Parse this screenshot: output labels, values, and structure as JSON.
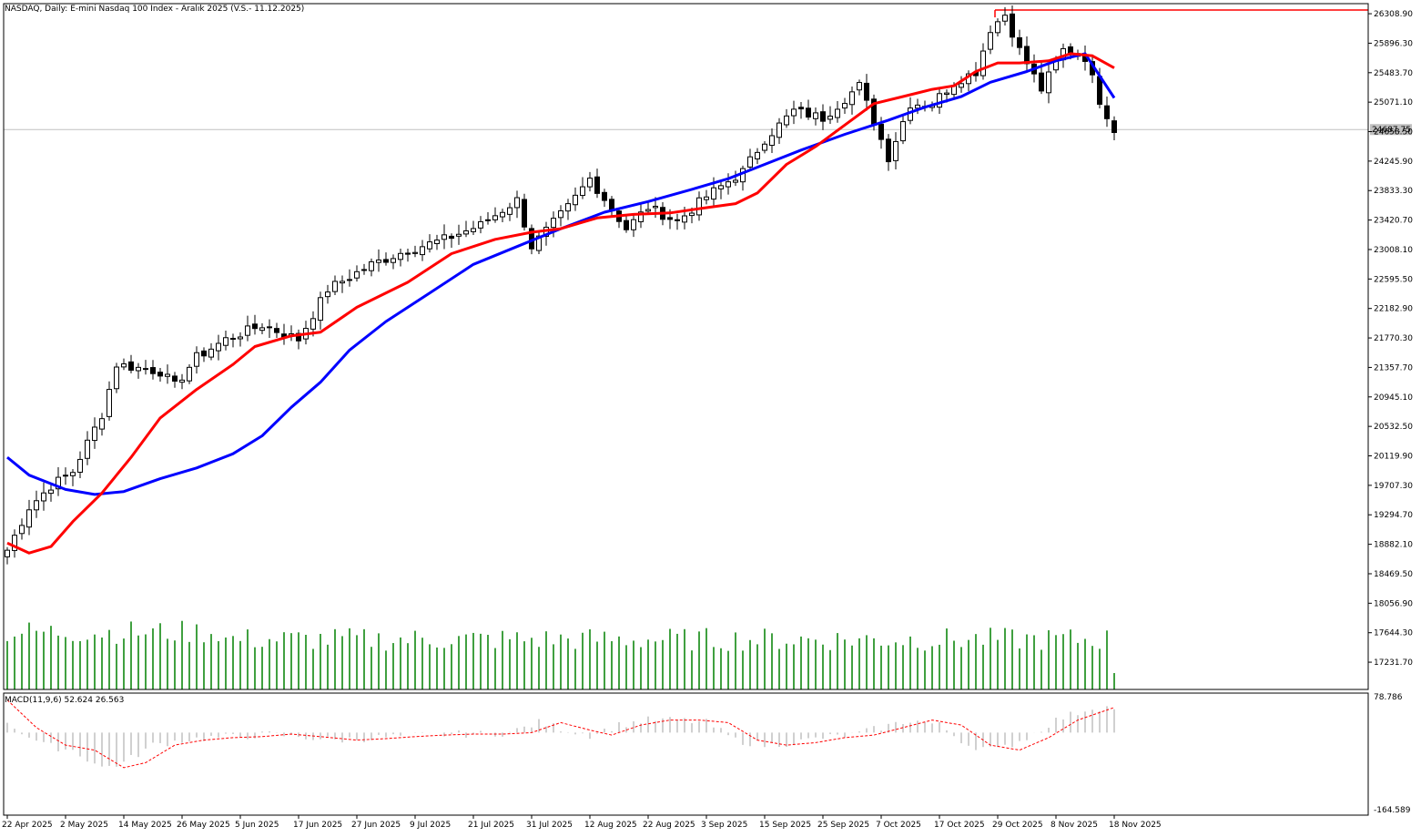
{
  "chart_data": {
    "type": "candlestick",
    "title": "NASDAQ, Daily:  E-mini Nasdaq 100 Index - Aralık 2025 (V.S.- 11.12.2025)",
    "last_price_label": "24687.75",
    "resistance_level": 26360,
    "ylim": [
      16850,
      26450
    ],
    "y_ticks": [
      "26308.90",
      "25896.30",
      "25483.70",
      "25071.10",
      "24658.50",
      "24245.90",
      "23833.30",
      "23420.70",
      "23008.10",
      "22595.50",
      "22182.90",
      "21770.30",
      "21357.70",
      "20945.10",
      "20532.50",
      "20119.90",
      "19707.30",
      "19294.70",
      "18882.10",
      "18469.50",
      "18056.90",
      "17644.30",
      "17231.70"
    ],
    "x_ticks": [
      {
        "i": 0,
        "label": "22 Apr 2025"
      },
      {
        "i": 8,
        "label": "2 May 2025"
      },
      {
        "i": 16,
        "label": "14 May 2025"
      },
      {
        "i": 24,
        "label": "26 May 2025"
      },
      {
        "i": 32,
        "label": "5 Jun 2025"
      },
      {
        "i": 40,
        "label": "17 Jun 2025"
      },
      {
        "i": 48,
        "label": "27 Jun 2025"
      },
      {
        "i": 56,
        "label": "9 Jul 2025"
      },
      {
        "i": 64,
        "label": "21 Jul 2025"
      },
      {
        "i": 72,
        "label": "31 Jul 2025"
      },
      {
        "i": 80,
        "label": "12 Aug 2025"
      },
      {
        "i": 88,
        "label": "22 Aug 2025"
      },
      {
        "i": 96,
        "label": "3 Sep 2025"
      },
      {
        "i": 104,
        "label": "15 Sep 2025"
      },
      {
        "i": 112,
        "label": "25 Sep 2025"
      },
      {
        "i": 120,
        "label": "7 Oct 2025"
      },
      {
        "i": 128,
        "label": "17 Oct 2025"
      },
      {
        "i": 136,
        "label": "29 Oct 2025"
      },
      {
        "i": 144,
        "label": "8 Nov 2025"
      },
      {
        "i": 152,
        "label": "18 Nov 2025"
      }
    ],
    "close_anchors": [
      [
        0,
        18800
      ],
      [
        3,
        19400
      ],
      [
        6,
        19700
      ],
      [
        9,
        19900
      ],
      [
        13,
        20700
      ],
      [
        15,
        21400
      ],
      [
        21,
        21300
      ],
      [
        23,
        21100
      ],
      [
        26,
        21500
      ],
      [
        30,
        21750
      ],
      [
        35,
        21950
      ],
      [
        40,
        21750
      ],
      [
        44,
        22450
      ],
      [
        50,
        22800
      ],
      [
        55,
        23000
      ],
      [
        60,
        23150
      ],
      [
        65,
        23350
      ],
      [
        70,
        23700
      ],
      [
        72,
        23050
      ],
      [
        77,
        23600
      ],
      [
        80,
        24000
      ],
      [
        85,
        23300
      ],
      [
        88,
        23600
      ],
      [
        92,
        23400
      ],
      [
        96,
        23750
      ],
      [
        101,
        24100
      ],
      [
        104,
        24550
      ],
      [
        108,
        24950
      ],
      [
        112,
        24850
      ],
      [
        117,
        25300
      ],
      [
        121,
        24300
      ],
      [
        124,
        25050
      ],
      [
        127,
        25050
      ],
      [
        130,
        25350
      ],
      [
        133,
        25500
      ],
      [
        135,
        26100
      ],
      [
        137,
        26300
      ],
      [
        139,
        25800
      ],
      [
        142,
        25250
      ],
      [
        145,
        25800
      ],
      [
        148,
        25700
      ],
      [
        150,
        25100
      ],
      [
        151,
        24900
      ],
      [
        152,
        24690
      ]
    ],
    "ma_fast": {
      "color": "#ff0000",
      "points": [
        [
          0,
          18900
        ],
        [
          3,
          18760
        ],
        [
          6,
          18850
        ],
        [
          9,
          19200
        ],
        [
          13,
          19600
        ],
        [
          17,
          20100
        ],
        [
          21,
          20650
        ],
        [
          26,
          21050
        ],
        [
          31,
          21400
        ],
        [
          34,
          21650
        ],
        [
          39,
          21800
        ],
        [
          43,
          21850
        ],
        [
          48,
          22200
        ],
        [
          55,
          22550
        ],
        [
          61,
          22950
        ],
        [
          67,
          23150
        ],
        [
          72,
          23250
        ],
        [
          76,
          23300
        ],
        [
          81,
          23450
        ],
        [
          86,
          23500
        ],
        [
          91,
          23520
        ],
        [
          95,
          23580
        ],
        [
          100,
          23650
        ],
        [
          103,
          23800
        ],
        [
          107,
          24200
        ],
        [
          111,
          24450
        ],
        [
          115,
          24750
        ],
        [
          119,
          25050
        ],
        [
          123,
          25150
        ],
        [
          127,
          25250
        ],
        [
          130,
          25300
        ],
        [
          133,
          25500
        ],
        [
          136,
          25620
        ],
        [
          139,
          25620
        ],
        [
          143,
          25650
        ],
        [
          146,
          25750
        ],
        [
          149,
          25720
        ],
        [
          152,
          25550
        ]
      ]
    },
    "ma_slow": {
      "color": "#0000ff",
      "points": [
        [
          0,
          20100
        ],
        [
          3,
          19850
        ],
        [
          8,
          19650
        ],
        [
          12,
          19580
        ],
        [
          16,
          19620
        ],
        [
          21,
          19800
        ],
        [
          26,
          19950
        ],
        [
          31,
          20150
        ],
        [
          35,
          20400
        ],
        [
          39,
          20800
        ],
        [
          43,
          21150
        ],
        [
          47,
          21600
        ],
        [
          52,
          22000
        ],
        [
          58,
          22400
        ],
        [
          64,
          22800
        ],
        [
          70,
          23050
        ],
        [
          76,
          23300
        ],
        [
          82,
          23530
        ],
        [
          88,
          23680
        ],
        [
          94,
          23850
        ],
        [
          99,
          24000
        ],
        [
          104,
          24200
        ],
        [
          109,
          24400
        ],
        [
          115,
          24620
        ],
        [
          121,
          24820
        ],
        [
          126,
          25000
        ],
        [
          131,
          25150
        ],
        [
          135,
          25350
        ],
        [
          140,
          25500
        ],
        [
          144,
          25650
        ],
        [
          148,
          25750
        ],
        [
          152,
          25130
        ]
      ]
    },
    "volume_color": "#008000",
    "macd": {
      "label": "MACD(11,9,6) 52.624 26.563",
      "ylim": [
        -164.589,
        78.786
      ],
      "y_ticks": [
        "78.786",
        "-164.589"
      ],
      "histogram_color": "#c0c0c0",
      "signal_color": "#ff0000",
      "signal_points": [
        [
          0,
          65
        ],
        [
          4,
          10
        ],
        [
          8,
          -25
        ],
        [
          12,
          -35
        ],
        [
          16,
          -70
        ],
        [
          19,
          -60
        ],
        [
          23,
          -25
        ],
        [
          27,
          -15
        ],
        [
          31,
          -10
        ],
        [
          35,
          -8
        ],
        [
          39,
          -3
        ],
        [
          43,
          -8
        ],
        [
          48,
          -15
        ],
        [
          52,
          -12
        ],
        [
          56,
          -8
        ],
        [
          60,
          -5
        ],
        [
          64,
          -3
        ],
        [
          68,
          -3
        ],
        [
          72,
          0
        ],
        [
          76,
          20
        ],
        [
          80,
          5
        ],
        [
          83,
          -5
        ],
        [
          87,
          15
        ],
        [
          91,
          25
        ],
        [
          95,
          25
        ],
        [
          99,
          20
        ],
        [
          103,
          -15
        ],
        [
          107,
          -25
        ],
        [
          111,
          -20
        ],
        [
          115,
          -10
        ],
        [
          119,
          -5
        ],
        [
          123,
          10
        ],
        [
          127,
          25
        ],
        [
          131,
          15
        ],
        [
          135,
          -25
        ],
        [
          139,
          -35
        ],
        [
          143,
          -10
        ],
        [
          147,
          25
        ],
        [
          151,
          45
        ],
        [
          152,
          50
        ]
      ]
    }
  }
}
